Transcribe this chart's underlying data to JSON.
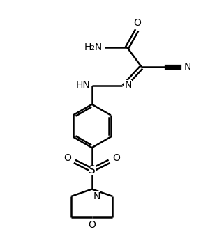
{
  "bg_color": "#ffffff",
  "line_color": "#000000",
  "line_width": 1.8,
  "font_size": 10,
  "figsize": [
    3.11,
    3.62
  ],
  "dpi": 100,
  "xlim": [
    0,
    10
  ],
  "ylim": [
    0,
    12
  ]
}
